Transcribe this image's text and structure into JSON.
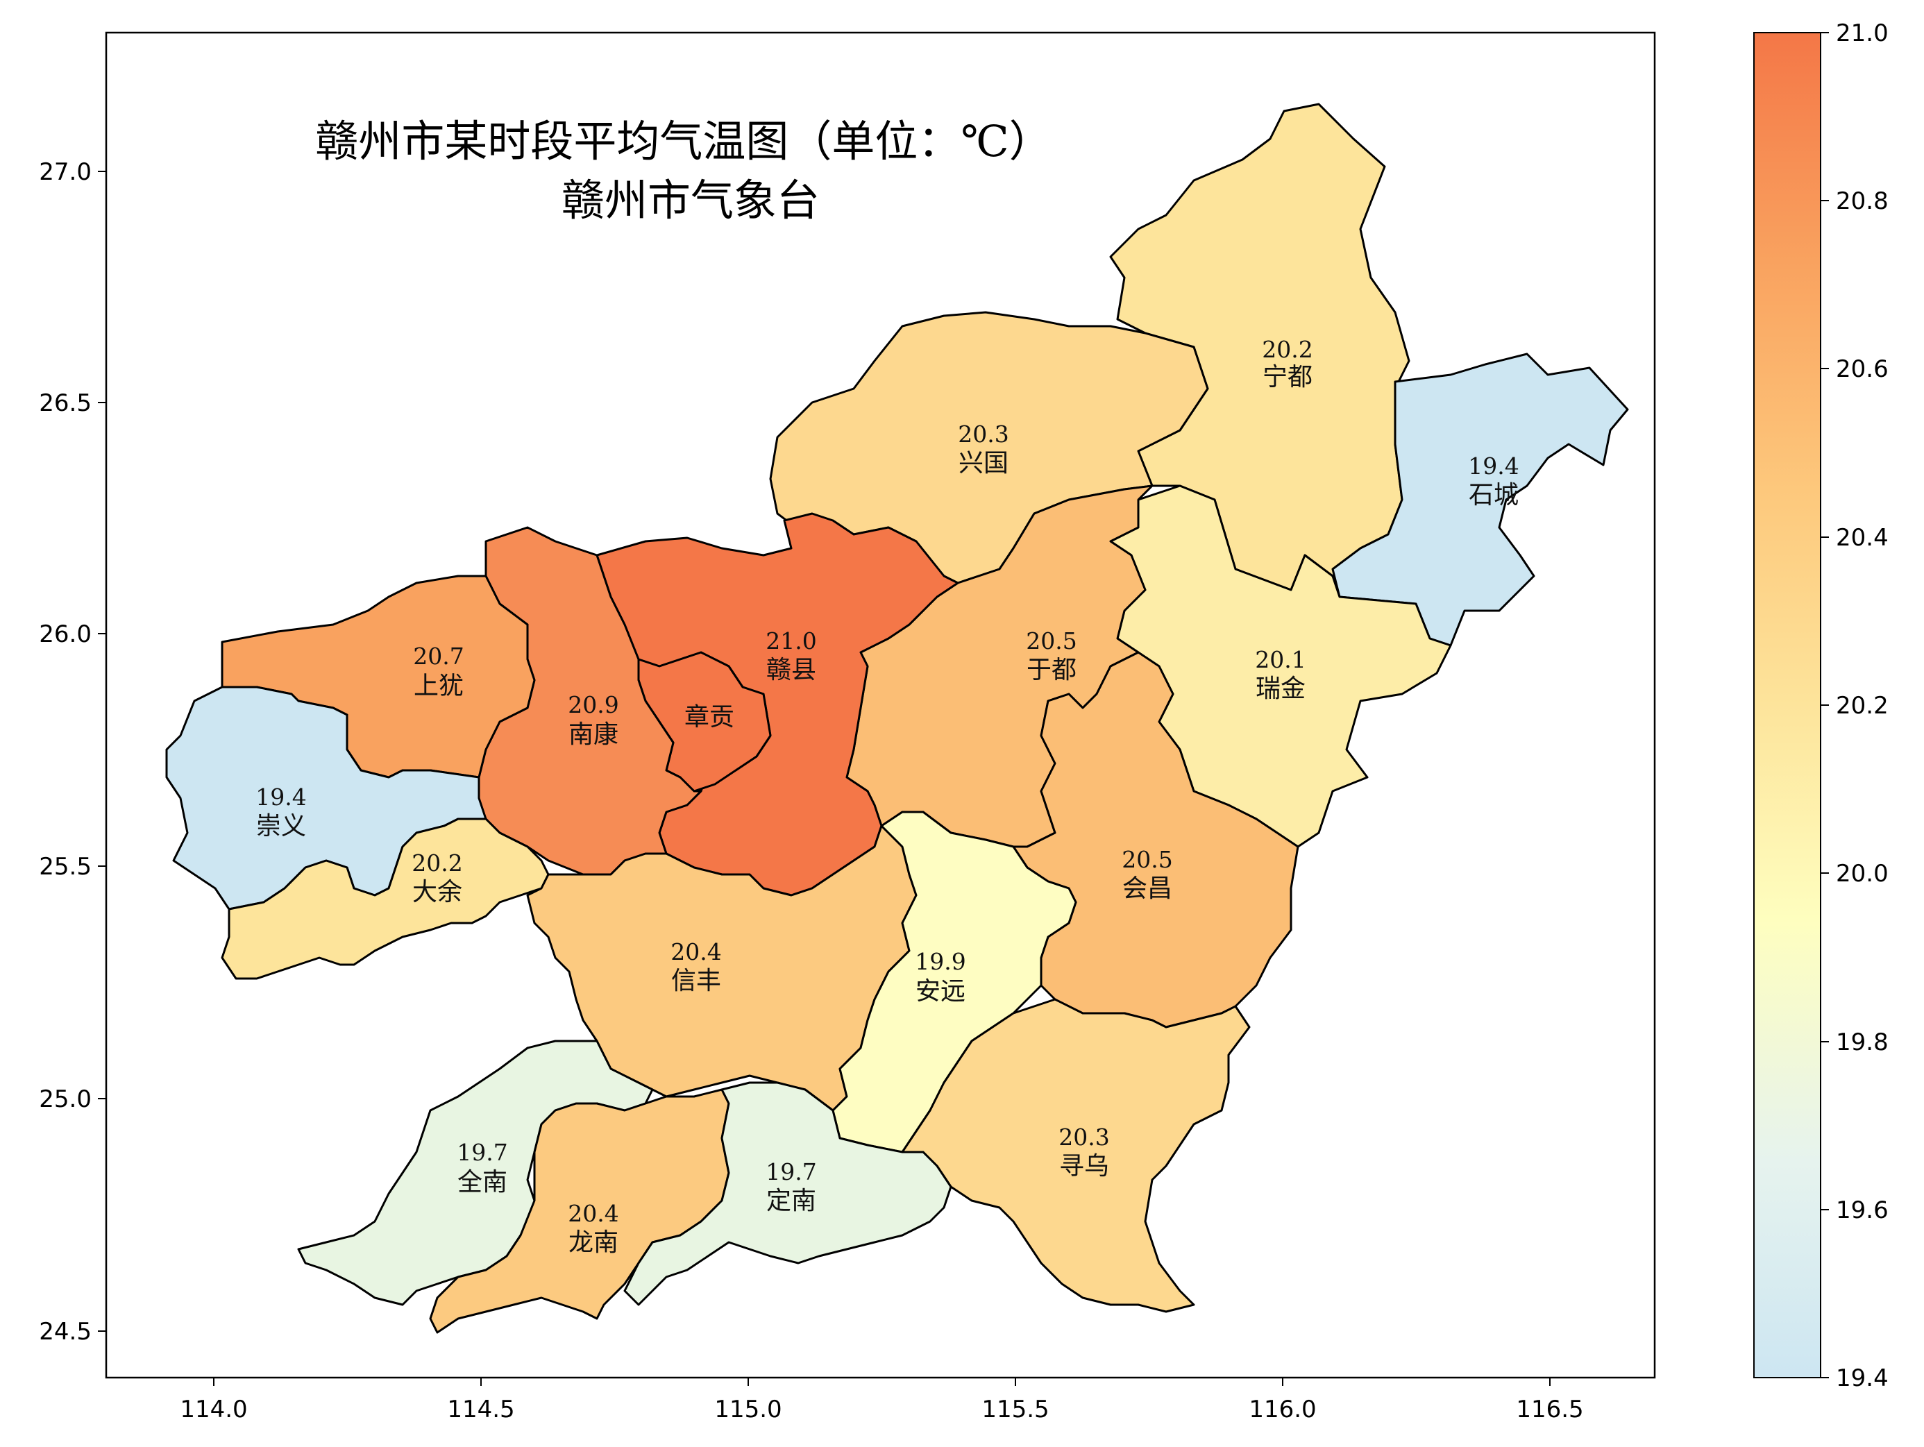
{
  "title_line1": "赣州市某时段平均气温图（单位：℃）",
  "title_line2": "赣州市气象台",
  "x_axis": {
    "ticks": [
      "114.0",
      "114.5",
      "115.0",
      "115.5",
      "116.0",
      "116.5"
    ]
  },
  "y_axis": {
    "ticks": [
      "24.5",
      "25.0",
      "25.5",
      "26.0",
      "26.5",
      "27.0"
    ]
  },
  "colorbar": {
    "min": 19.4,
    "max": 21.0,
    "ticks": [
      "19.4",
      "19.6",
      "19.8",
      "20.0",
      "20.2",
      "20.4",
      "20.6",
      "20.8",
      "21.0"
    ],
    "colors": [
      "#cde6f2",
      "#e6f3ee",
      "#fefebf",
      "#fde49b",
      "#fdc87c",
      "#f9a25f",
      "#f47747"
    ]
  },
  "counties": [
    {
      "id": "ningdu",
      "name": "宁都",
      "value": "20.2",
      "color": "#fde49b"
    },
    {
      "id": "shicheng",
      "name": "石城",
      "value": "19.4",
      "color": "#cde6f2"
    },
    {
      "id": "xingguo",
      "name": "兴国",
      "value": "20.3",
      "color": "#fdd88f"
    },
    {
      "id": "ruijin",
      "name": "瑞金",
      "value": "20.1",
      "color": "#fdeda8"
    },
    {
      "id": "yudu",
      "name": "于都",
      "value": "20.5",
      "color": "#fbbe75"
    },
    {
      "id": "ganxian",
      "name": "赣县",
      "value": "21.0",
      "color": "#f47748"
    },
    {
      "id": "zhanggong",
      "name": "章贡",
      "value": "",
      "color": "#f47748"
    },
    {
      "id": "nankang",
      "name": "南康",
      "value": "20.9",
      "color": "#f68c55"
    },
    {
      "id": "shangyou",
      "name": "上犹",
      "value": "20.7",
      "color": "#f9a25f"
    },
    {
      "id": "chongyi",
      "name": "崇义",
      "value": "19.4",
      "color": "#cde6f2"
    },
    {
      "id": "dayu",
      "name": "大余",
      "value": "20.2",
      "color": "#fde49b"
    },
    {
      "id": "huichang",
      "name": "会昌",
      "value": "20.5",
      "color": "#fbbe75"
    },
    {
      "id": "xinfeng",
      "name": "信丰",
      "value": "20.4",
      "color": "#fcca80"
    },
    {
      "id": "anyuan",
      "name": "安远",
      "value": "19.9",
      "color": "#fefdc2"
    },
    {
      "id": "xunwu",
      "name": "寻乌",
      "value": "20.3",
      "color": "#fdd88f"
    },
    {
      "id": "quannan",
      "name": "全南",
      "value": "19.7",
      "color": "#e8f5e2"
    },
    {
      "id": "longnan",
      "name": "龙南",
      "value": "20.4",
      "color": "#fcca80"
    },
    {
      "id": "dingnan",
      "name": "定南",
      "value": "19.7",
      "color": "#e8f5e2"
    }
  ]
}
